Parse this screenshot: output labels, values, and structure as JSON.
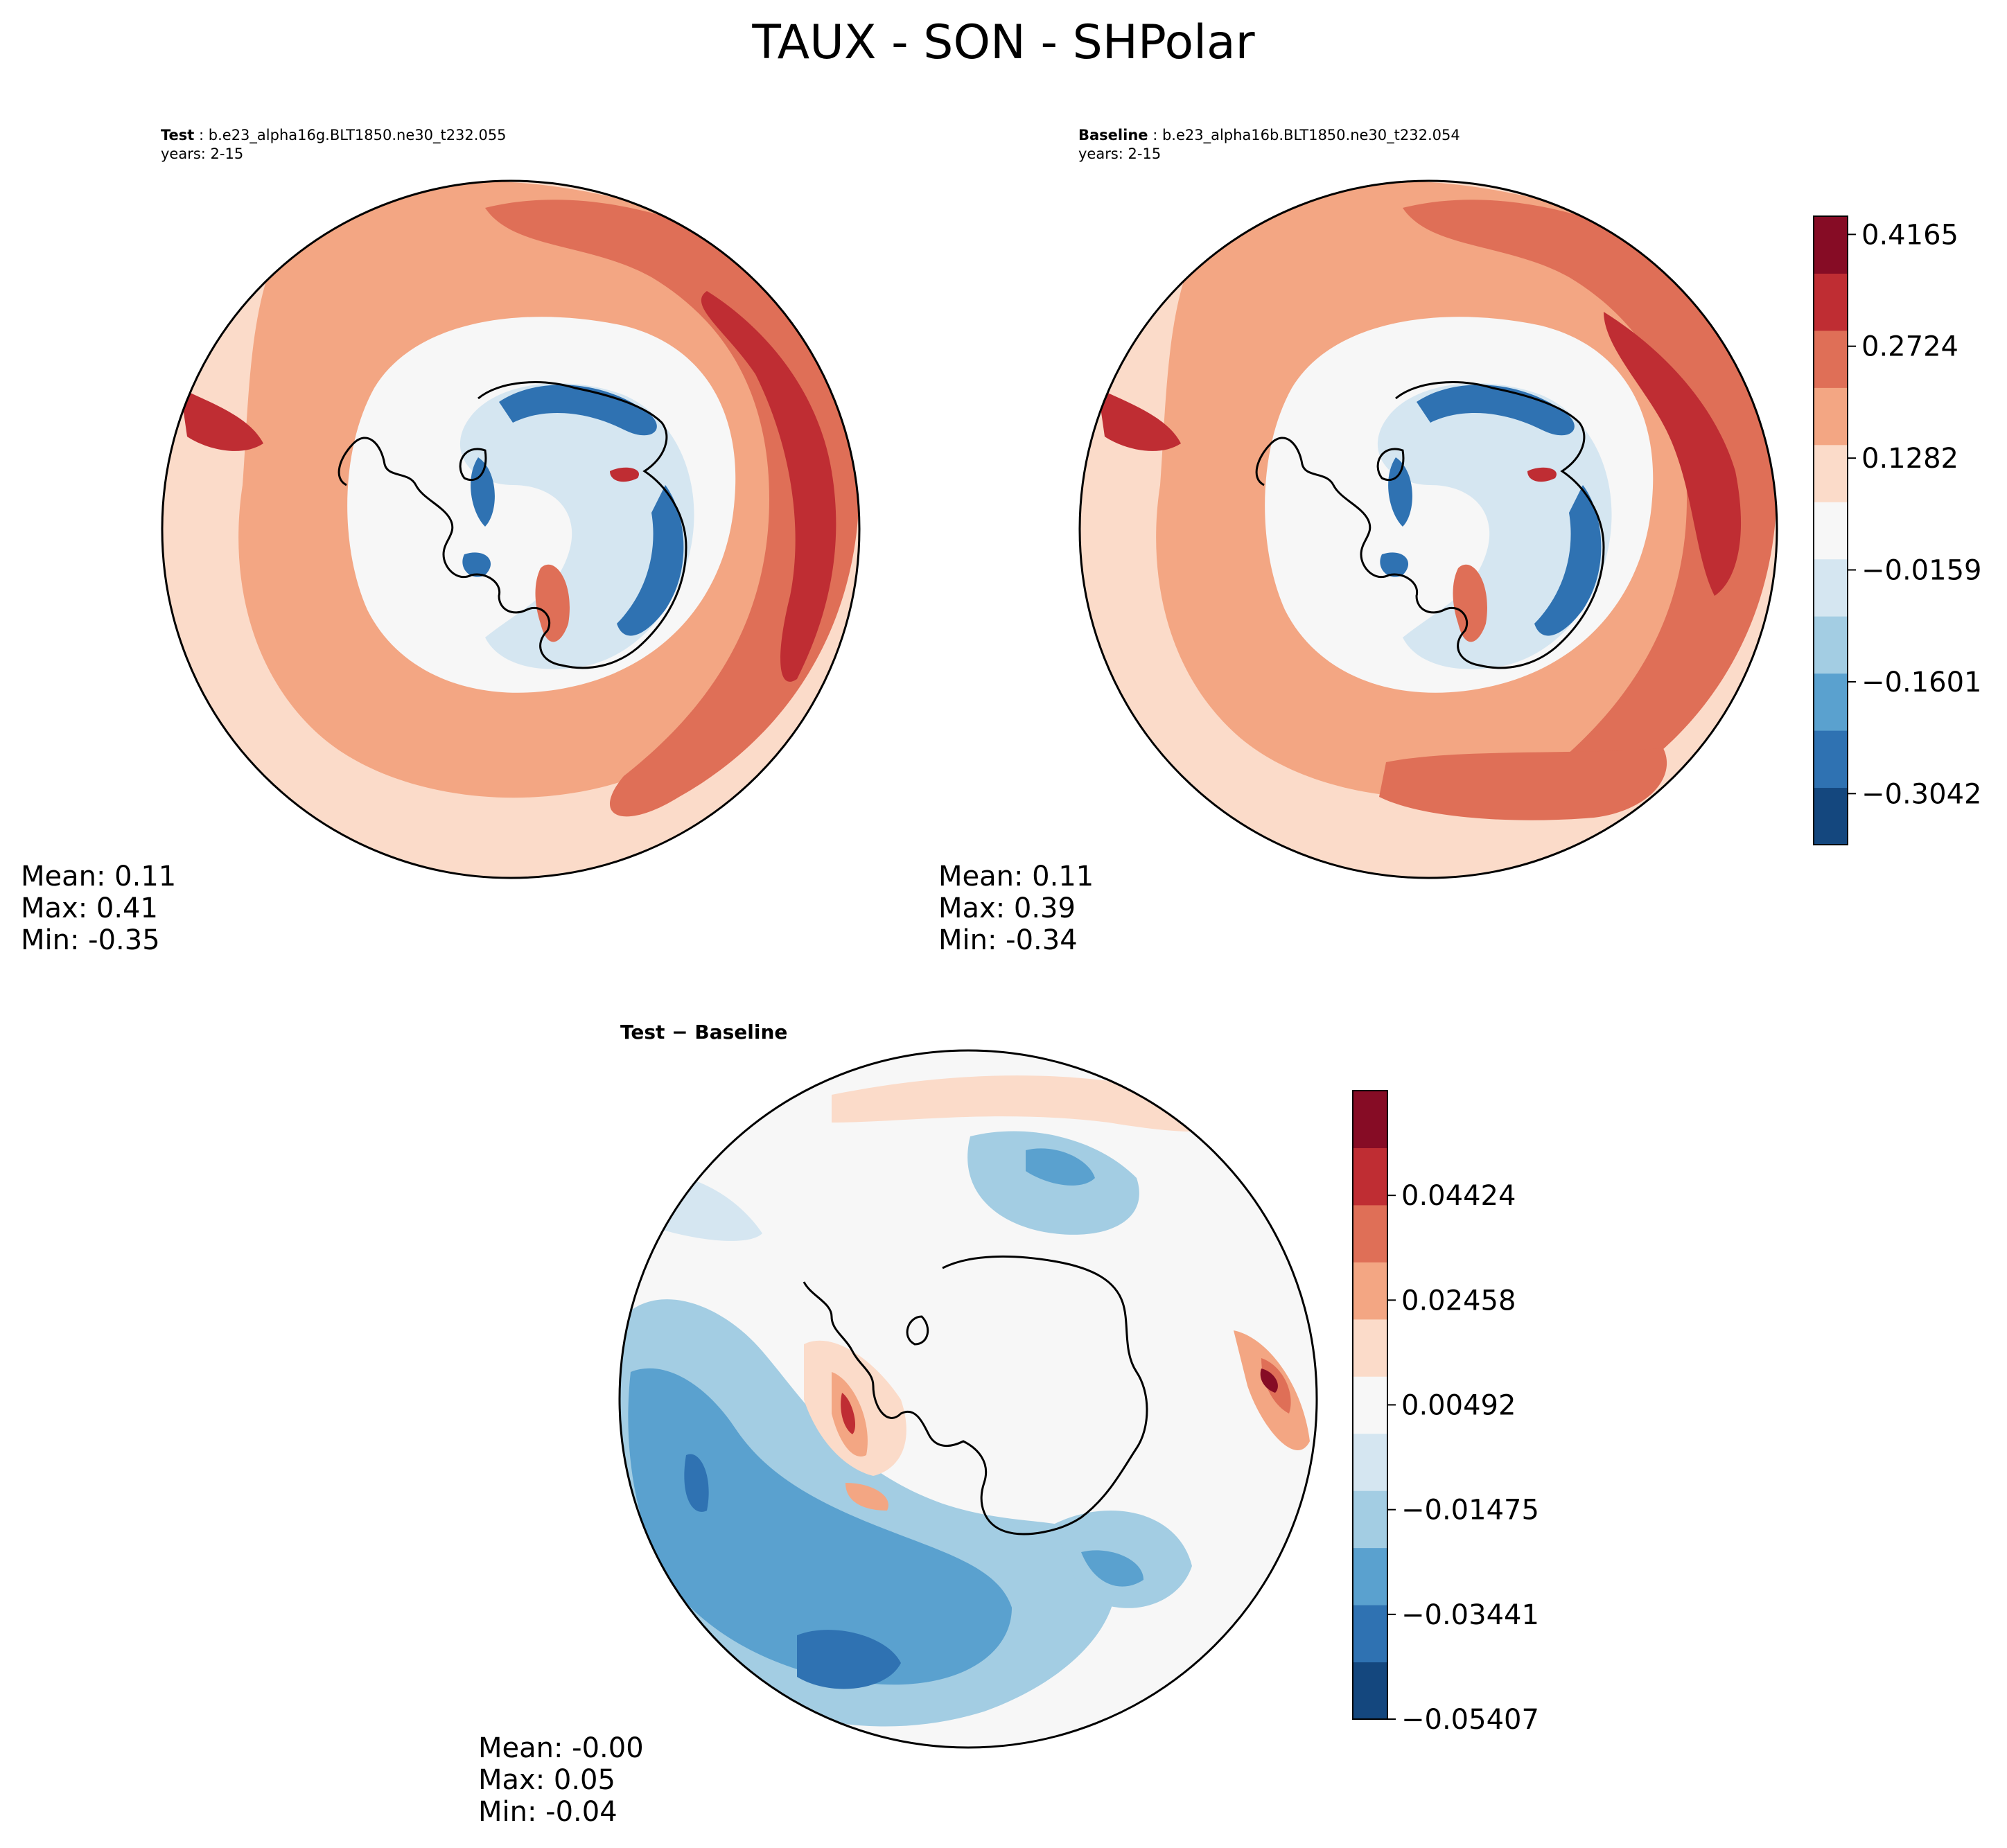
{
  "figure": {
    "title": "TAUX - SON - SHPolar"
  },
  "panels": {
    "test": {
      "label": "Test",
      "case": "b.e23_alpha16g.BLT1850.ne30_t232.055",
      "years": "years: 2-15",
      "mean": "Mean:  0.11",
      "max": "Max:  0.41",
      "min": "Min: -0.35"
    },
    "baseline": {
      "label": "Baseline",
      "case": "b.e23_alpha16b.BLT1850.ne30_t232.054",
      "years": "years: 2-15",
      "mean": "Mean:  0.11",
      "max": "Max:  0.39",
      "min": "Min: -0.34"
    },
    "diff": {
      "label": "Test − Baseline",
      "mean": "Mean: -0.00",
      "max": "Max:  0.05",
      "min": "Min: -0.04"
    }
  },
  "colors": {
    "palette": [
      "#14477e",
      "#2f72b2",
      "#5aa1cf",
      "#a3cde3",
      "#d5e6f1",
      "#f7f7f7",
      "#fbdbc9",
      "#f3a683",
      "#df6f57",
      "#bf2d33",
      "#860c25"
    ],
    "coastline": "#000000"
  },
  "chart_data": [
    {
      "type": "heatmap",
      "name": "test",
      "projection": "south polar stereographic",
      "colorbar": {
        "ticks": [
          0.4165,
          0.2724,
          0.1282,
          -0.0159,
          -0.1601,
          -0.3042
        ],
        "tick_labels": [
          "0.4165",
          "0.2724",
          "0.1282",
          "−0.0159",
          "−0.1601",
          "−0.3042"
        ],
        "range": [
          -0.37,
          0.44
        ]
      },
      "stats": {
        "mean": 0.11,
        "max": 0.41,
        "min": -0.35
      }
    },
    {
      "type": "heatmap",
      "name": "baseline",
      "projection": "south polar stereographic",
      "stats": {
        "mean": 0.11,
        "max": 0.39,
        "min": -0.34
      }
    },
    {
      "type": "heatmap",
      "name": "difference",
      "projection": "south polar stereographic",
      "colorbar": {
        "ticks": [
          0.04424,
          0.02458,
          0.00492,
          -0.01475,
          -0.03441,
          -0.05407
        ],
        "tick_labels": [
          "0.04424",
          "0.02458",
          "0.00492",
          "−0.01475",
          "−0.03441",
          "−0.05407"
        ],
        "range": [
          -0.05407,
          0.0639
        ]
      },
      "stats": {
        "mean": -0.0,
        "max": 0.05,
        "min": -0.04
      }
    }
  ]
}
